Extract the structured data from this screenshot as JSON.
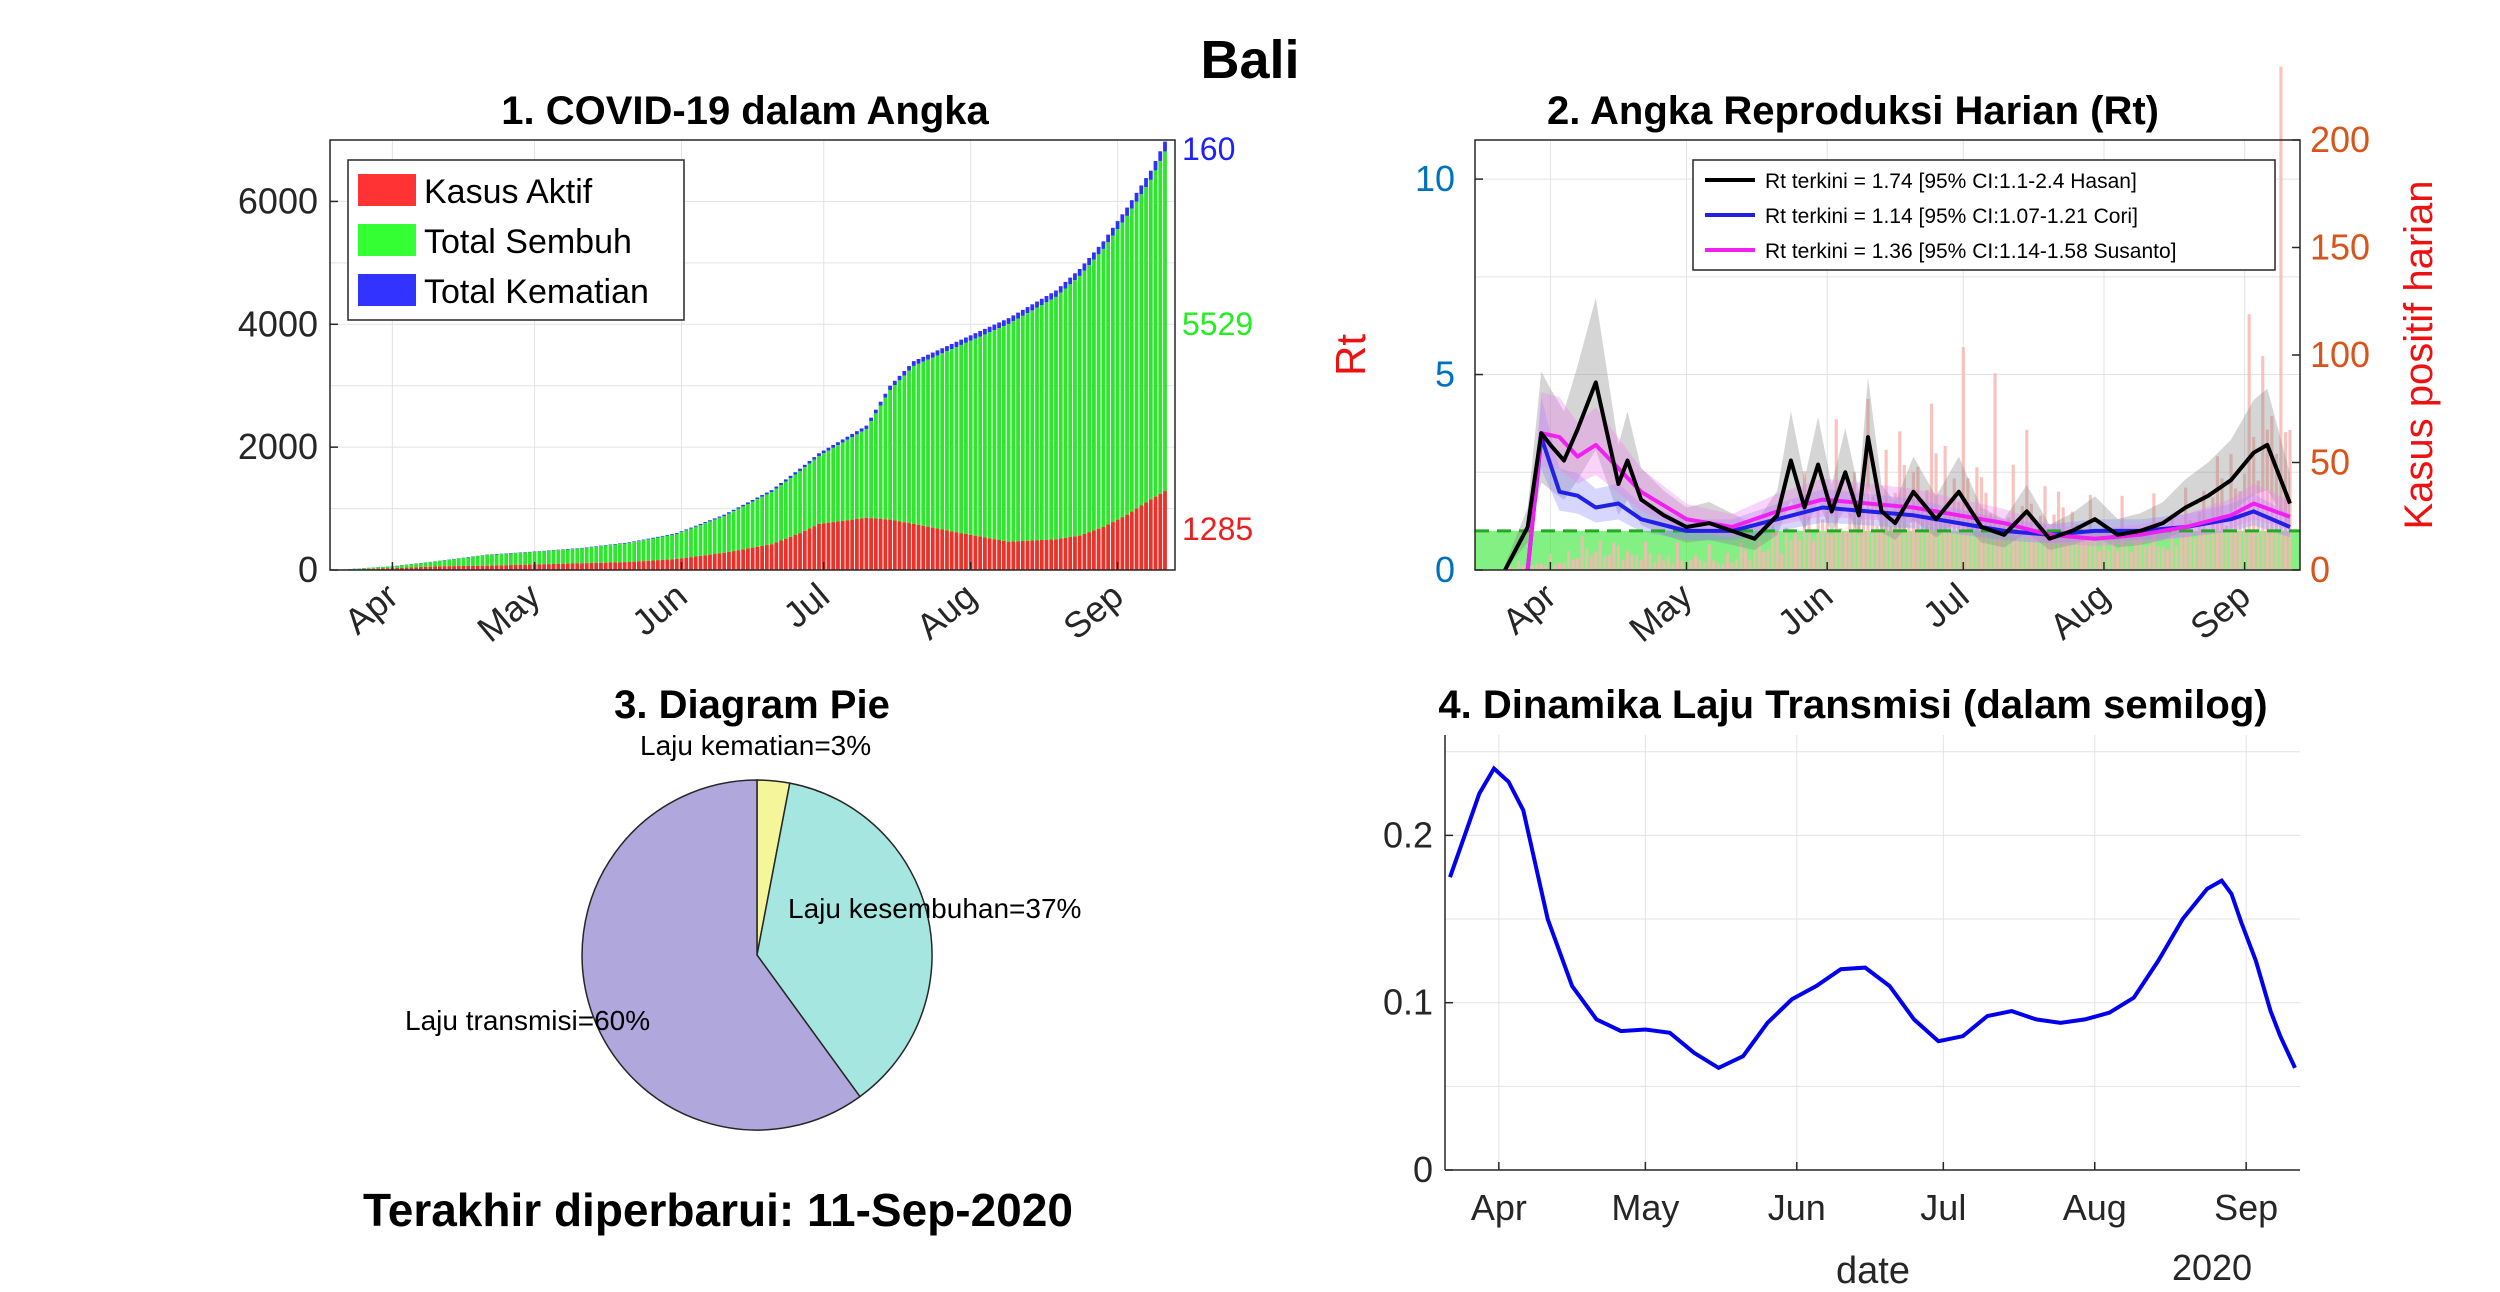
{
  "page_title": "Bali",
  "footer": "Terakhir diperbarui: 11-Sep-2020",
  "colors": {
    "active": "#e8322a",
    "recovered": "#2ee62e",
    "deaths": "#2f2fff",
    "rt_hasan": "#000000",
    "rt_cori": "#2020e6",
    "rt_susanto": "#f020f0",
    "bars2": "#f7b9b4",
    "threshold": "#22aa22",
    "right_axis": "#d9541a",
    "left_axis": "#0072bd",
    "pie_death": "#f5f59a",
    "pie_recovery": "#a6e6e0",
    "pie_transmission": "#b0a8dc",
    "line4": "#0000ee"
  },
  "chart_data": [
    {
      "id": "p1",
      "type": "bar",
      "stacked": true,
      "title": "1. COVID-19 dalam Angka",
      "x_ticks": [
        "Apr",
        "May",
        "Jun",
        "Jul",
        "Aug",
        "Sep"
      ],
      "ylim": [
        0,
        7000
      ],
      "y_ticks": [
        "0",
        "2000",
        "4000",
        "6000"
      ],
      "legend": [
        "Kasus Aktif",
        "Total Sembuh",
        "Total Kematian"
      ],
      "legend_position": "top-left",
      "grid": true,
      "series_knots": {
        "day_offset_from_Mar22": [
          0,
          10,
          20,
          30,
          40,
          50,
          60,
          70,
          80,
          90,
          96,
          100,
          110,
          115,
          120,
          130,
          140,
          150,
          155,
          160,
          165,
          170,
          173
        ],
        "active": [
          5,
          30,
          60,
          70,
          90,
          110,
          130,
          180,
          280,
          420,
          600,
          750,
          850,
          820,
          750,
          600,
          460,
          500,
          560,
          700,
          900,
          1150,
          1285
        ],
        "total": [
          10,
          60,
          150,
          250,
          300,
          360,
          450,
          600,
          900,
          1300,
          1650,
          1900,
          2350,
          3000,
          3400,
          3750,
          4100,
          4550,
          4900,
          5350,
          5900,
          6500,
          6974
        ]
      },
      "end_labels": {
        "deaths": "160",
        "recovered": "5529",
        "active": "1285"
      }
    },
    {
      "id": "p2",
      "type": "line",
      "title": "2. Angka Reproduksi Harian (Rt)",
      "ylabel_left": "Rt",
      "ylabel_right": "Kasus positif harian",
      "x_ticks": [
        "Apr",
        "May",
        "Jun",
        "Jul",
        "Aug",
        "Sep"
      ],
      "ylim_left": [
        0,
        11
      ],
      "y_ticks_left": [
        "0",
        "5",
        "10"
      ],
      "ylim_right": [
        0,
        200
      ],
      "y_ticks_right": [
        "0",
        "50",
        "100",
        "150",
        "200"
      ],
      "threshold": 1,
      "grid": true,
      "legend": [
        "Rt terkini = 1.74 [95% CI:1.1-2.4 Hasan]",
        "Rt terkini = 1.14 [95% CI:1.07-1.21 Cori]",
        "Rt terkini = 1.36 [95% CI:1.14-1.58 Susanto]"
      ],
      "legend_position": "top-right",
      "series": [
        {
          "name": "Hasan",
          "x": [
            0,
            5,
            8,
            10,
            13,
            16,
            20,
            25,
            27,
            30,
            35,
            40,
            45,
            50,
            55,
            60,
            63,
            66,
            69,
            72,
            75,
            78,
            80,
            83,
            86,
            90,
            95,
            100,
            105,
            110,
            115,
            120,
            125,
            130,
            135,
            140,
            145,
            150,
            155,
            160,
            165,
            168,
            170,
            173
          ],
          "y": [
            0,
            1.1,
            3.5,
            3.2,
            2.8,
            3.6,
            4.8,
            2.2,
            2.8,
            1.8,
            1.4,
            1.1,
            1.2,
            1.0,
            0.8,
            1.4,
            2.8,
            1.6,
            2.7,
            1.5,
            2.5,
            1.4,
            3.4,
            1.5,
            1.2,
            2.0,
            1.3,
            2.0,
            1.1,
            0.9,
            1.5,
            0.8,
            1.0,
            1.3,
            0.9,
            1.0,
            1.2,
            1.6,
            1.9,
            2.3,
            3.0,
            3.2,
            2.6,
            1.7
          ]
        },
        {
          "name": "Cori",
          "x": [
            5,
            8,
            12,
            16,
            20,
            25,
            30,
            40,
            50,
            60,
            70,
            80,
            90,
            100,
            110,
            120,
            130,
            140,
            150,
            160,
            165,
            173
          ],
          "y": [
            0,
            3.4,
            2.0,
            1.9,
            1.6,
            1.7,
            1.3,
            1.0,
            1.0,
            1.3,
            1.6,
            1.5,
            1.4,
            1.2,
            1.0,
            0.9,
            1.0,
            1.0,
            1.1,
            1.3,
            1.5,
            1.1
          ]
        },
        {
          "name": "Susanto",
          "x": [
            5,
            8,
            12,
            16,
            20,
            25,
            30,
            40,
            50,
            60,
            70,
            80,
            90,
            100,
            110,
            120,
            130,
            140,
            150,
            160,
            165,
            173
          ],
          "y": [
            0,
            3.5,
            3.4,
            2.9,
            3.2,
            2.6,
            2.0,
            1.3,
            1.1,
            1.5,
            1.8,
            1.7,
            1.6,
            1.4,
            1.2,
            0.9,
            0.8,
            0.9,
            1.1,
            1.4,
            1.7,
            1.36
          ]
        }
      ],
      "daily_cases_knots": {
        "x": [
          0,
          10,
          20,
          30,
          40,
          50,
          60,
          70,
          80,
          90,
          100,
          110,
          120,
          130,
          140,
          150,
          160,
          165,
          170,
          173
        ],
        "y": [
          2,
          5,
          15,
          10,
          8,
          8,
          20,
          40,
          55,
          60,
          70,
          55,
          40,
          25,
          20,
          30,
          60,
          90,
          150,
          140
        ]
      }
    },
    {
      "id": "p3",
      "type": "pie",
      "title": "3. Diagram Pie",
      "slices": [
        {
          "label": "Laju kematian=3%",
          "value": 3
        },
        {
          "label": "Laju kesembuhan=37%",
          "value": 37
        },
        {
          "label": "Laju transmisi=60%",
          "value": 60
        }
      ]
    },
    {
      "id": "p4",
      "type": "line",
      "title": "4. Dinamika Laju Transmisi (dalam semilog)",
      "xlabel": "date",
      "x_tick_year": "2020",
      "x_ticks": [
        "Apr",
        "May",
        "Jun",
        "Jul",
        "Aug",
        "Sep"
      ],
      "ylim": [
        0,
        0.26
      ],
      "y_ticks": [
        "0",
        "0.1",
        "0.2"
      ],
      "grid": true,
      "series": [
        {
          "x": [
            0,
            3,
            6,
            9,
            12,
            15,
            20,
            25,
            30,
            35,
            40,
            45,
            50,
            55,
            60,
            65,
            70,
            75,
            80,
            85,
            90,
            95,
            100,
            105,
            110,
            115,
            120,
            125,
            130,
            135,
            140,
            145,
            150,
            155,
            158,
            160,
            162,
            165,
            168,
            170,
            173
          ],
          "y": [
            0.175,
            0.2,
            0.225,
            0.24,
            0.232,
            0.215,
            0.15,
            0.11,
            0.09,
            0.083,
            0.084,
            0.082,
            0.07,
            0.061,
            0.068,
            0.088,
            0.102,
            0.11,
            0.12,
            0.121,
            0.11,
            0.09,
            0.077,
            0.08,
            0.092,
            0.095,
            0.09,
            0.088,
            0.09,
            0.094,
            0.103,
            0.125,
            0.15,
            0.168,
            0.173,
            0.165,
            0.148,
            0.125,
            0.095,
            0.08,
            0.061
          ]
        }
      ]
    }
  ]
}
